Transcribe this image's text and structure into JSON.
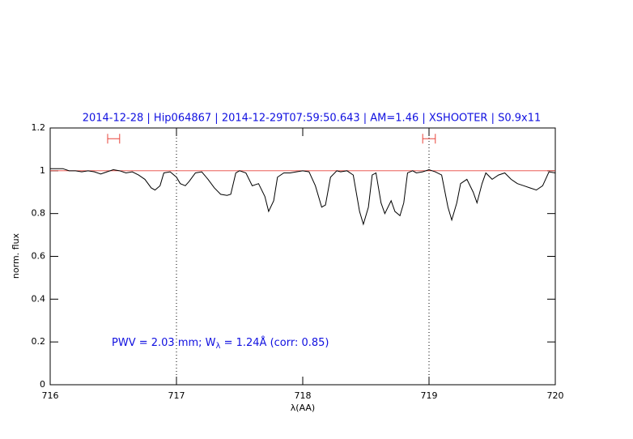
{
  "chart_data": {
    "type": "line",
    "title": "2014-12-28 | Hip064867 | 2014-12-29T07:59:50.643 | AM=1.46 | XSHOOTER | S0.9x11",
    "annotation": [
      "PWV = 2.03 mm; W",
      "λ",
      " = 1.24Å (corr: 0.85)"
    ],
    "xlabel": "λ(AA)",
    "ylabel": "norm. flux",
    "xlim": [
      716,
      720
    ],
    "ylim": [
      0,
      1.2
    ],
    "xticks": [
      716,
      717,
      718,
      719,
      720
    ],
    "yticks": [
      0,
      0.2,
      0.4,
      0.6,
      0.8,
      1,
      1.2
    ],
    "vlines": [
      717,
      719
    ],
    "reference_line": {
      "value": 1,
      "color": "#e8453c"
    },
    "markers": {
      "color": "#e8453c",
      "y": 1.15,
      "ranges": [
        [
          716.455,
          716.55
        ],
        [
          718.95,
          719.05
        ]
      ]
    },
    "text_color": "#1010e0",
    "x": [
      716.0,
      716.1,
      716.15,
      716.2,
      716.25,
      716.3,
      716.35,
      716.4,
      716.45,
      716.5,
      716.55,
      716.6,
      716.65,
      716.7,
      716.75,
      716.8,
      716.83,
      716.87,
      716.9,
      716.95,
      717.0,
      717.03,
      717.07,
      717.1,
      717.15,
      717.2,
      717.25,
      717.3,
      717.35,
      717.4,
      717.43,
      717.47,
      717.5,
      717.55,
      717.6,
      717.65,
      717.7,
      717.73,
      717.77,
      717.8,
      717.85,
      717.9,
      717.95,
      718.0,
      718.05,
      718.1,
      718.15,
      718.18,
      718.22,
      718.27,
      718.3,
      718.35,
      718.4,
      718.45,
      718.48,
      718.52,
      718.55,
      718.58,
      718.62,
      718.65,
      718.7,
      718.73,
      718.77,
      718.8,
      718.83,
      718.87,
      718.9,
      718.95,
      719.0,
      719.05,
      719.1,
      719.15,
      719.18,
      719.22,
      719.25,
      719.3,
      719.35,
      719.38,
      719.42,
      719.45,
      719.5,
      719.55,
      719.6,
      719.65,
      719.7,
      719.75,
      719.8,
      719.85,
      719.9,
      719.95,
      720.0
    ],
    "series": [
      {
        "color": "#000000",
        "values": [
          1.01,
          1.01,
          1.0,
          1.0,
          0.995,
          1.0,
          0.995,
          0.985,
          0.995,
          1.005,
          1.0,
          0.99,
          0.995,
          0.98,
          0.96,
          0.92,
          0.91,
          0.93,
          0.99,
          0.995,
          0.97,
          0.94,
          0.93,
          0.95,
          0.99,
          0.995,
          0.96,
          0.92,
          0.89,
          0.885,
          0.89,
          0.99,
          1.0,
          0.99,
          0.93,
          0.94,
          0.88,
          0.81,
          0.86,
          0.97,
          0.99,
          0.99,
          0.995,
          1.0,
          0.995,
          0.93,
          0.83,
          0.84,
          0.97,
          1.0,
          0.995,
          1.0,
          0.98,
          0.81,
          0.75,
          0.83,
          0.98,
          0.99,
          0.85,
          0.8,
          0.86,
          0.81,
          0.79,
          0.85,
          0.99,
          1.0,
          0.99,
          0.995,
          1.005,
          0.995,
          0.98,
          0.83,
          0.77,
          0.85,
          0.94,
          0.96,
          0.9,
          0.85,
          0.94,
          0.99,
          0.96,
          0.98,
          0.99,
          0.96,
          0.94,
          0.93,
          0.92,
          0.91,
          0.93,
          0.995,
          0.99
        ]
      }
    ]
  }
}
